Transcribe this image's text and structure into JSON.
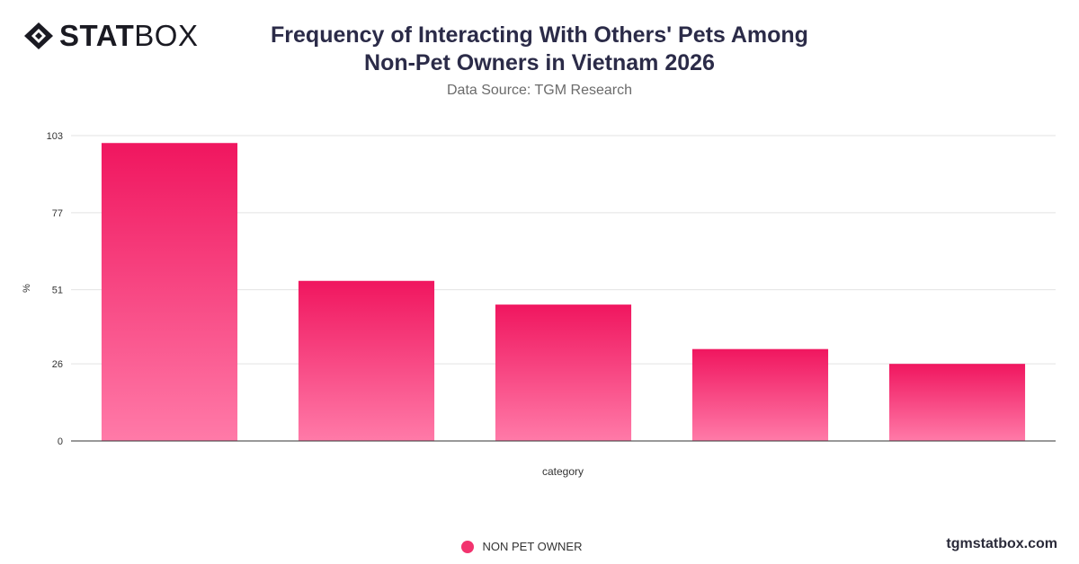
{
  "brand": {
    "logo_bold": "STAT",
    "logo_light": "BOX",
    "footer": "tgmstatbox.com"
  },
  "colors": {
    "bar_top": "#f0165f",
    "bar_bottom": "#ff7aa8",
    "legend": "#f2336e",
    "grid": "#e3e3e3",
    "axis": "#333333"
  },
  "chart_data": {
    "type": "bar",
    "title_line1": "Frequency of Interacting With Others' Pets Among",
    "title_line2": "Non-Pet Owners in Vietnam 2026",
    "subtitle": "Data Source: TGM Research",
    "xlabel": "category",
    "ylabel": "%",
    "categories": [
      "",
      "",
      "",
      "",
      ""
    ],
    "y_ticks": [
      0,
      26,
      51,
      77,
      103
    ],
    "ylim": [
      0,
      103
    ],
    "grid": true,
    "legend_position": "bottom",
    "series": [
      {
        "name": "NON PET OWNER",
        "values": [
          100.5,
          54,
          46,
          31,
          26
        ]
      }
    ]
  }
}
